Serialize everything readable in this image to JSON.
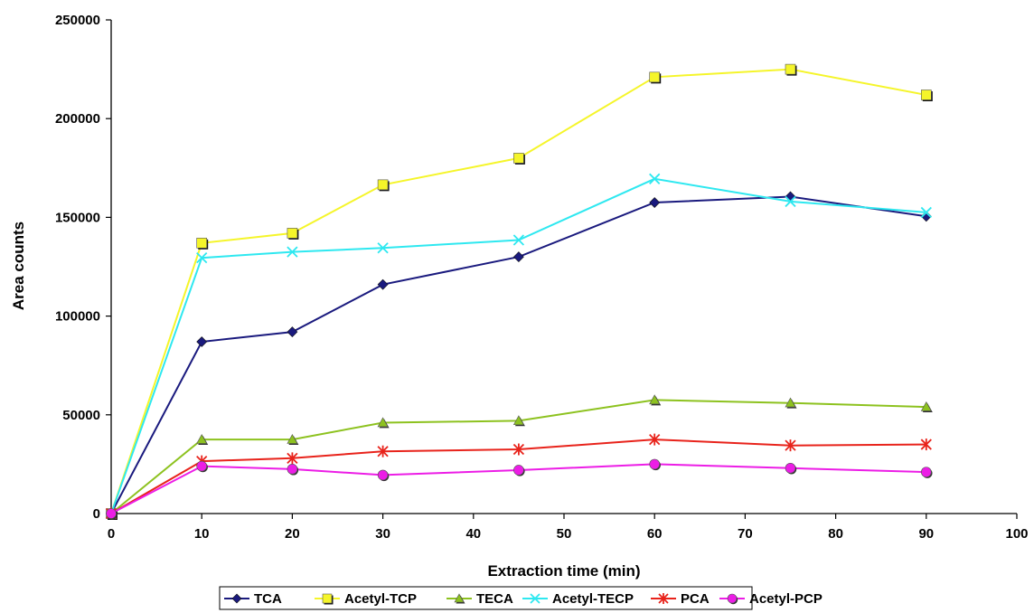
{
  "chart_data": {
    "type": "line",
    "xlabel": "Extraction time (min)",
    "ylabel": "Area counts",
    "xlim": [
      0,
      100
    ],
    "ylim": [
      0,
      250000
    ],
    "x_ticks": [
      "0",
      "10",
      "20",
      "30",
      "40",
      "50",
      "60",
      "70",
      "80",
      "90",
      "100"
    ],
    "y_ticks": [
      "0",
      "50000",
      "100000",
      "150000",
      "200000",
      "250000"
    ],
    "grid": false,
    "legend_position": "bottom",
    "x": [
      0,
      10,
      20,
      30,
      45,
      60,
      75,
      90
    ],
    "series": [
      {
        "name": "TCA",
        "color": "#1a1a7e",
        "marker": "diamond",
        "values": [
          0,
          87000,
          92000,
          116000,
          130000,
          157500,
          160500,
          150500
        ]
      },
      {
        "name": "Acetyl-TCP",
        "color": "#f5f52a",
        "marker": "square",
        "values": [
          0,
          137000,
          142000,
          166500,
          180000,
          221000,
          225000,
          212000
        ]
      },
      {
        "name": "TECA",
        "color": "#8dc21f",
        "marker": "triangle",
        "values": [
          0,
          37500,
          37500,
          46000,
          47000,
          57500,
          56000,
          54000
        ]
      },
      {
        "name": "Acetyl-TECP",
        "color": "#2ee8f0",
        "marker": "x",
        "values": [
          0,
          129500,
          132500,
          134500,
          138500,
          169500,
          158000,
          152500
        ]
      },
      {
        "name": "PCA",
        "color": "#e8231b",
        "marker": "asterisk",
        "values": [
          0,
          26500,
          28000,
          31500,
          32500,
          37500,
          34500,
          35000
        ]
      },
      {
        "name": "Acetyl-PCP",
        "color": "#ec1de6",
        "marker": "circle",
        "values": [
          0,
          24000,
          22500,
          19500,
          22000,
          25000,
          23000,
          21000
        ]
      }
    ]
  }
}
